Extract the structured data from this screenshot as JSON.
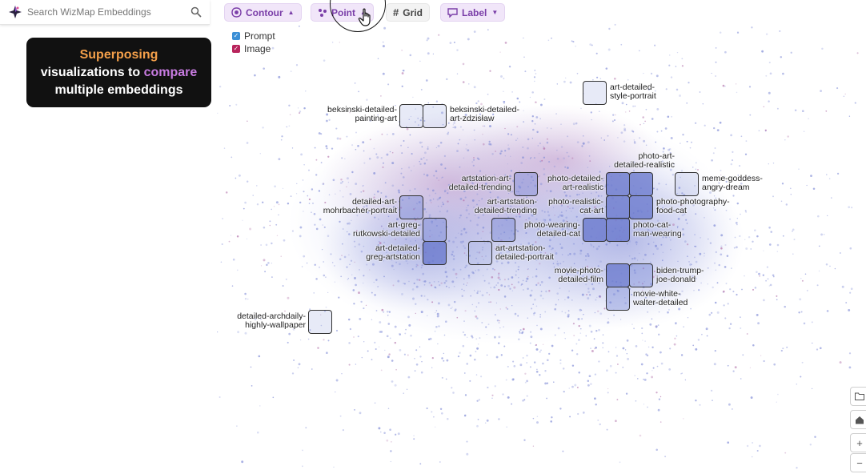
{
  "search": {
    "placeholder": "Search WizMap Embeddings"
  },
  "callout": {
    "line1": "Superposing",
    "line2a": "visualizations to ",
    "line2b": "compare",
    "line3": "multiple embeddings"
  },
  "toolbar": {
    "contour_label": "Contour",
    "point_label": "Point",
    "grid_label": "Grid",
    "label_label": "Label"
  },
  "legend": {
    "prompt_label": "Prompt",
    "image_label": "Image",
    "prompt_color": "#3b8fd6",
    "image_color": "#b8245c"
  },
  "colors": {
    "accent": "#7a3ea8",
    "points": "#8a96dd"
  },
  "labels": {
    "l01": "art-detailed-\nstyle-portrait",
    "l02": "beksinski-detailed-\npainting-art",
    "l03": "beksinski-detailed-\nart-zdzisław",
    "l04": "photo-art-\ndetailed-realistic",
    "l05": "artstation-art-\ndetailed-trending",
    "l06": "photo-detailed-\nart-realistic",
    "l07": "meme-goddess-\nangry-dream",
    "l08": "detailed-art-\nmohrbacher-portrait",
    "l09": "art-artstation-\ndetailed-trending",
    "l10": "photo-realistic-\ncat-art",
    "l11": "photo-photography-\nfood-cat",
    "l12": "art-greg-\nrutkowski-detailed",
    "l13": "photo-wearing-\ndetailed-cat",
    "l14": "photo-cat-\nman-wearing",
    "l15": "art-detailed-\ngreg-artstation",
    "l16": "art-artstation-\ndetailed-portrait",
    "l17": "movie-photo-\ndetailed-film",
    "l18": "biden-trump-\njoe-donald",
    "l19": "movie-white-\nwalter-detailed",
    "l20": "detailed-archdaily-\nhighly-wallpaper"
  }
}
